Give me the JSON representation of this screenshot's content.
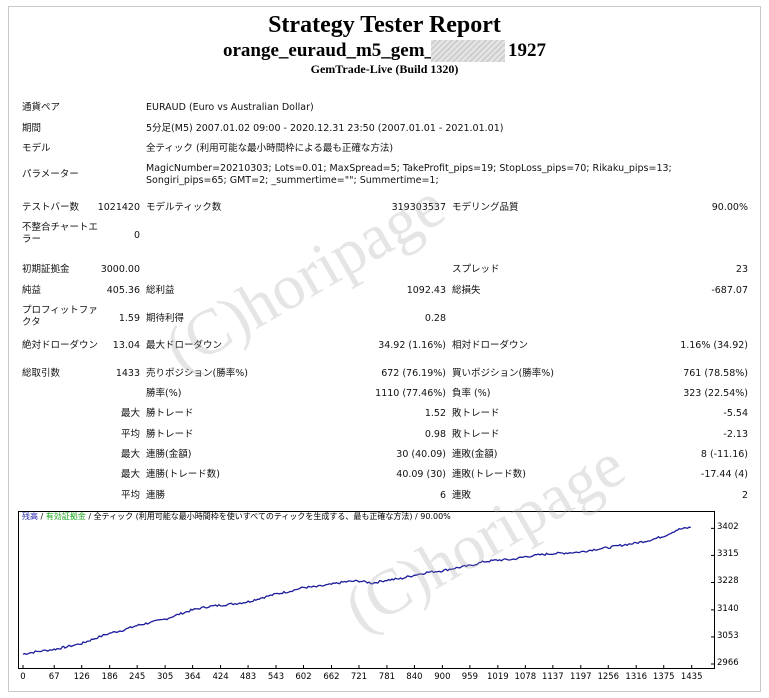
{
  "header": {
    "title": "Strategy Tester Report",
    "ea_prefix": "orange_euraud_m5_gem_",
    "ea_suffix": "1927",
    "server": "GemTrade-Live (Build 1320)"
  },
  "info": [
    {
      "label": "通貨ペア",
      "value": "EURAUD (Euro vs Australian Dollar)"
    },
    {
      "label": "期間",
      "value": "5分足(M5) 2007.01.02 09:00 - 2020.12.31 23:50 (2007.01.01 - 2021.01.01)"
    },
    {
      "label": "モデル",
      "value": "全ティック (利用可能な最小時間枠による最も正確な方法)"
    },
    {
      "label": "パラメーター",
      "value": "MagicNumber=20210303; Lots=0.01; MaxSpread=5; TakeProfit_pips=19; StopLoss_pips=70; Rikaku_pips=13; Songiri_pips=65; GMT=2; _summertime=\"\"; Summertime=1;"
    }
  ],
  "stats": {
    "bars_label": "テストバー数",
    "bars_value": "1021420",
    "modelticks_label": "モデルティック数",
    "modelticks_value": "319303537",
    "quality_label": "モデリング品質",
    "quality_value": "90.00%",
    "mismatch_label": "不整合チャートエラー",
    "mismatch_value": "0",
    "deposit_label": "初期証拠金",
    "deposit_value": "3000.00",
    "spread_label": "スプレッド",
    "spread_value": "23",
    "netprofit_label": "純益",
    "netprofit_value": "405.36",
    "grossprofit_label": "総利益",
    "grossprofit_value": "1092.43",
    "grossloss_label": "総損失",
    "grossloss_value": "-687.07",
    "pf_label": "プロフィットファクタ",
    "pf_value": "1.59",
    "payoff_label": "期待利得",
    "payoff_value": "0.28",
    "absdd_label": "絶対ドローダウン",
    "absdd_value": "13.04",
    "maxdd_label": "最大ドローダウン",
    "maxdd_value": "34.92 (1.16%)",
    "reldd_label": "相対ドローダウン",
    "reldd_value": "1.16% (34.92)",
    "trades_label": "総取引数",
    "trades_value": "1433",
    "short_label": "売りポジション(勝率%)",
    "short_value": "672 (76.19%)",
    "long_label": "買いポジション(勝率%)",
    "long_value": "761 (78.58%)",
    "win_label": "勝率(%)",
    "win_value": "1110 (77.46%)",
    "lossr_label": "負率 (%)",
    "lossr_value": "323 (22.54%)",
    "max_label": "最大",
    "avg_label": "平均",
    "besttrade_label": "勝トレード",
    "besttrade_value": "1.52",
    "worsttrade_label": "敗トレード",
    "worsttrade_value": "-5.54",
    "avgwin_label": "勝トレード",
    "avgwin_value": "0.98",
    "avgloss_label": "敗トレード",
    "avgloss_value": "-2.13",
    "maxconswin_label": "連勝(金額)",
    "maxconswin_value": "30 (40.09)",
    "maxconsloss_label": "連敗(金額)",
    "maxconsloss_value": "8 (-11.16)",
    "maxconswintr_label": "連勝(トレード数)",
    "maxconswintr_value": "40.09 (30)",
    "maxconslosstr_label": "連敗(トレード数)",
    "maxconslosstr_value": "-17.44 (4)",
    "avgconswin_label": "連勝",
    "avgconswin_value": "6",
    "avgconsloss_label": "連敗",
    "avgconsloss_value": "2"
  },
  "chart_head": {
    "balance": "残高",
    "sep1": " / ",
    "equity": "有効証拠金",
    "sep2": " / ",
    "rest": "全ティック (利用可能な最小時間枠を使いすべてのティックを生成する、最も正確な方法) / 90.00%"
  },
  "watermark": "(C)horipage",
  "colors": {
    "balance": "#1f1fa8",
    "equity": "#1fa81f",
    "line": "#1c1c9c"
  },
  "chart_data": {
    "type": "line",
    "title": "",
    "xlabel": "",
    "ylabel": "",
    "x_ticks": [
      0,
      67,
      126,
      186,
      245,
      305,
      364,
      424,
      483,
      543,
      602,
      662,
      721,
      781,
      840,
      900,
      959,
      1019,
      1078,
      1137,
      1197,
      1256,
      1316,
      1375,
      1435
    ],
    "y_ticks": [
      2966,
      3053,
      3140,
      3228,
      3315,
      3402
    ],
    "xlim": [
      0,
      1470
    ],
    "ylim": [
      2966,
      3416
    ],
    "series": [
      {
        "name": "残高",
        "x": [
          0,
          30,
          67,
          90,
          126,
          150,
          186,
          215,
          245,
          270,
          305,
          335,
          364,
          395,
          424,
          455,
          483,
          510,
          543,
          570,
          602,
          630,
          662,
          690,
          721,
          750,
          781,
          810,
          840,
          870,
          900,
          930,
          959,
          990,
          1019,
          1050,
          1078,
          1110,
          1137,
          1165,
          1197,
          1225,
          1256,
          1285,
          1316,
          1345,
          1375,
          1405,
          1433
        ],
        "values": [
          2998,
          3006,
          3013,
          3020,
          3032,
          3046,
          3065,
          3075,
          3090,
          3098,
          3110,
          3126,
          3140,
          3150,
          3155,
          3160,
          3166,
          3178,
          3191,
          3199,
          3212,
          3214,
          3222,
          3230,
          3233,
          3226,
          3236,
          3240,
          3252,
          3261,
          3266,
          3275,
          3282,
          3295,
          3300,
          3302,
          3311,
          3317,
          3321,
          3323,
          3326,
          3334,
          3340,
          3348,
          3355,
          3364,
          3377,
          3398,
          3405
        ]
      }
    ],
    "grid": false
  }
}
